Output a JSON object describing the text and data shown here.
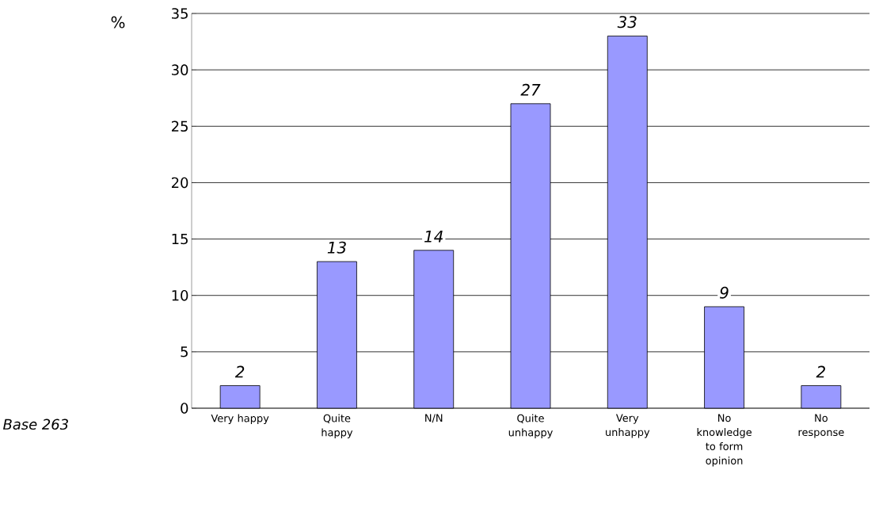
{
  "chart_data": {
    "type": "bar",
    "ylabel": "%",
    "categories": [
      "Very happy",
      "Quite happy",
      "N/N",
      "Quite unhappy",
      "Very unhappy",
      "No knowledge to form opinion",
      "No response"
    ],
    "values": [
      2,
      13,
      14,
      27,
      33,
      9,
      2
    ],
    "color": "#9999ff",
    "ylim": [
      0,
      35
    ],
    "yticks": [
      0,
      5,
      10,
      15,
      20,
      25,
      30,
      35
    ],
    "grid": "y",
    "data_labels": true,
    "annotations": [
      "Base 263"
    ]
  }
}
